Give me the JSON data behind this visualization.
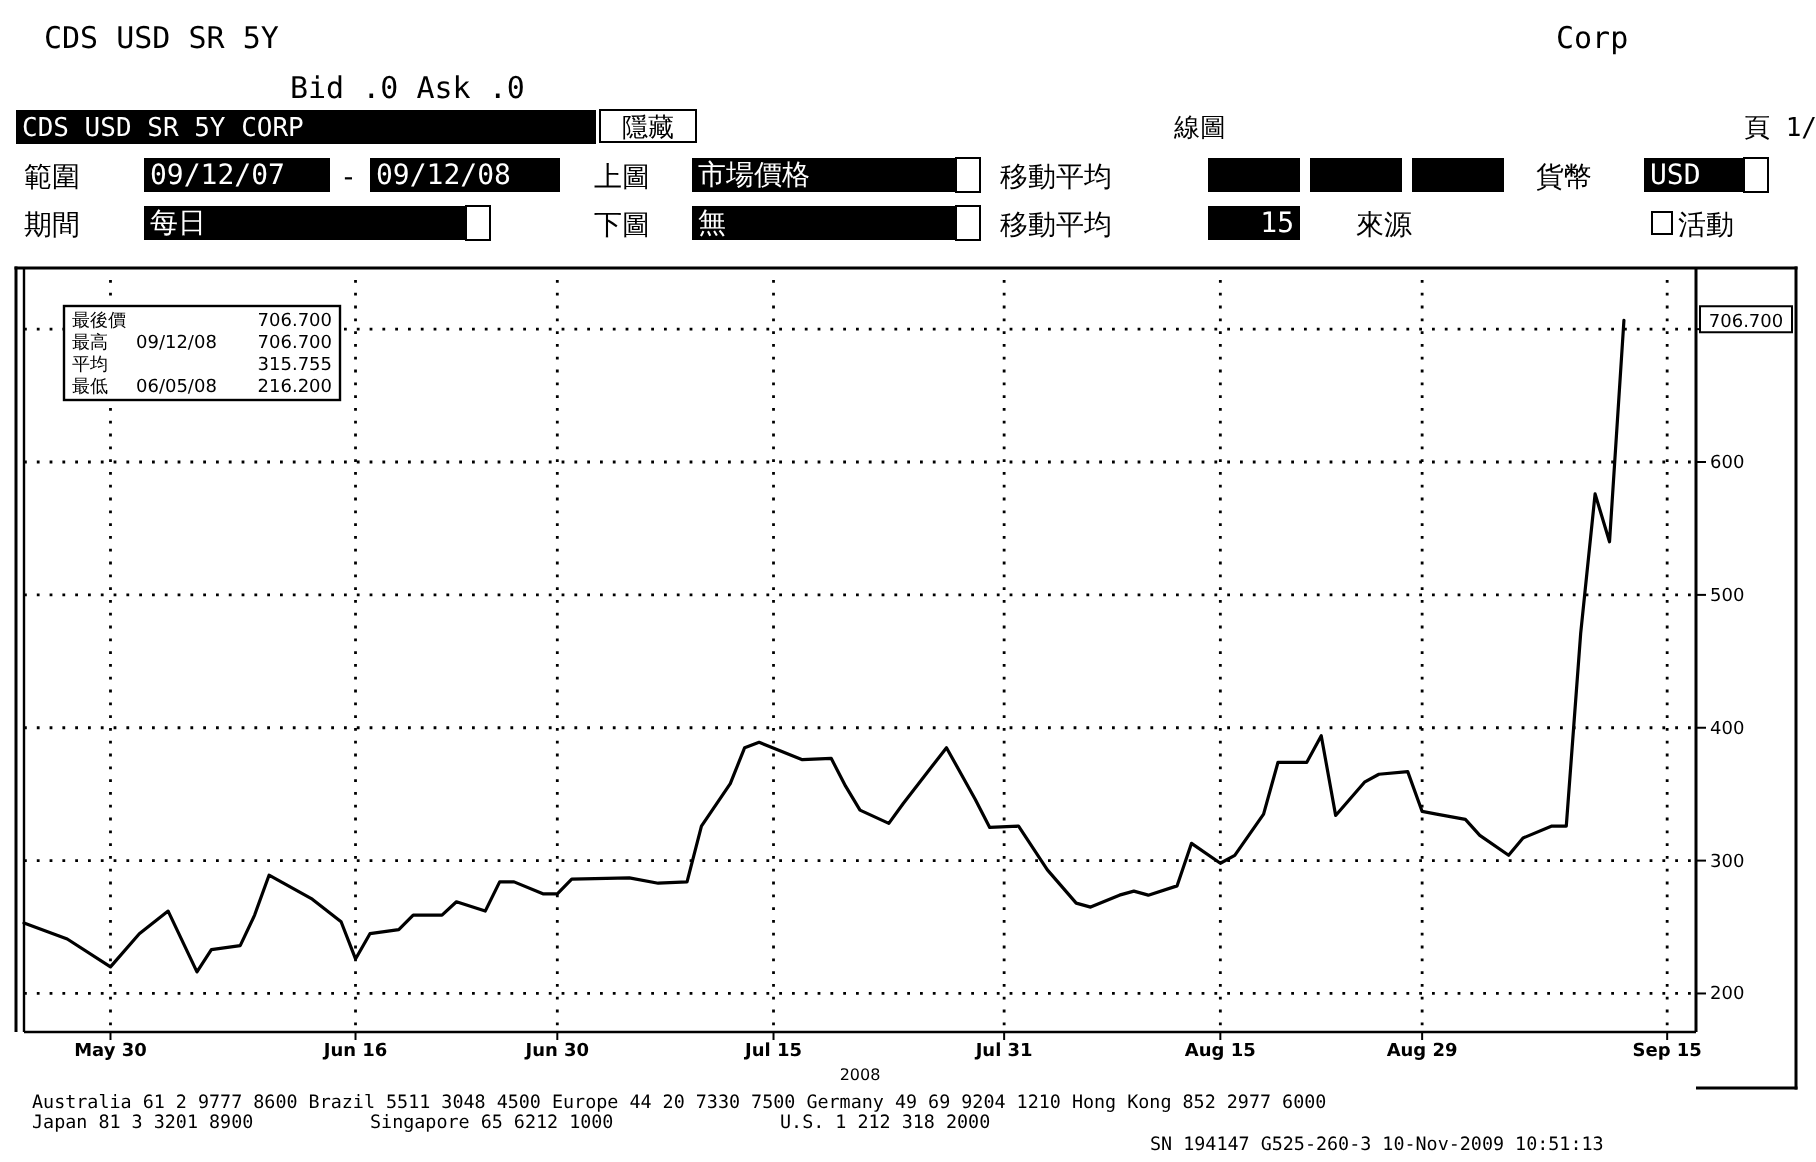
{
  "chart_data": {
    "type": "line",
    "title": "CDS USD SR 5Y",
    "subtitle": "Bid .0  Ask .0",
    "xlabel": "2008",
    "x": [
      "2008-05-24",
      "2008-05-27",
      "2008-05-30",
      "2008-06-01",
      "2008-06-03",
      "2008-06-05",
      "2008-06-06",
      "2008-06-08",
      "2008-06-09",
      "2008-06-10",
      "2008-06-13",
      "2008-06-15",
      "2008-06-16",
      "2008-06-17",
      "2008-06-19",
      "2008-06-20",
      "2008-06-22",
      "2008-06-23",
      "2008-06-25",
      "2008-06-26",
      "2008-06-27",
      "2008-06-29",
      "2008-06-30",
      "2008-07-01",
      "2008-07-05",
      "2008-07-07",
      "2008-07-09",
      "2008-07-10",
      "2008-07-12",
      "2008-07-13",
      "2008-07-14",
      "2008-07-17",
      "2008-07-19",
      "2008-07-20",
      "2008-07-21",
      "2008-07-23",
      "2008-07-24",
      "2008-07-26",
      "2008-07-27",
      "2008-07-29",
      "2008-07-30",
      "2008-08-01",
      "2008-08-03",
      "2008-08-05",
      "2008-08-06",
      "2008-08-08",
      "2008-08-09",
      "2008-08-10",
      "2008-08-12",
      "2008-08-13",
      "2008-08-15",
      "2008-08-16",
      "2008-08-18",
      "2008-08-19",
      "2008-08-21",
      "2008-08-22",
      "2008-08-23",
      "2008-08-25",
      "2008-08-26",
      "2008-08-28",
      "2008-08-29",
      "2008-08-30",
      "2008-09-01",
      "2008-09-02",
      "2008-09-04",
      "2008-09-05",
      "2008-09-07",
      "2008-09-08",
      "2008-09-09",
      "2008-09-10",
      "2008-09-11",
      "2008-09-12"
    ],
    "series": [
      {
        "color": "#000000",
        "values": [
          253,
          241,
          220,
          245,
          262,
          216.2,
          233,
          236,
          259,
          289,
          271,
          254,
          226,
          245,
          248,
          259,
          259,
          269,
          262,
          284,
          284,
          275,
          275,
          286,
          287,
          283,
          284,
          326,
          358,
          385,
          389,
          376,
          377,
          356,
          338,
          328,
          343,
          371,
          385,
          346,
          325,
          326,
          293,
          268,
          265,
          274,
          277,
          274,
          281,
          313,
          298,
          304,
          335,
          374,
          374,
          394,
          334,
          359,
          365,
          367,
          337,
          335,
          331,
          319,
          304,
          317,
          326,
          326,
          471,
          576,
          540,
          706.7
        ]
      }
    ],
    "xlim": [
      "2008-05-24",
      "2008-09-17"
    ],
    "xticks": [
      {
        "value": "2008-05-30",
        "label": "May 30"
      },
      {
        "value": "2008-06-16",
        "label": "Jun 16"
      },
      {
        "value": "2008-06-30",
        "label": "Jun 30"
      },
      {
        "value": "2008-07-15",
        "label": "Jul 15"
      },
      {
        "value": "2008-07-31",
        "label": "Jul 31"
      },
      {
        "value": "2008-08-15",
        "label": "Aug 15"
      },
      {
        "value": "2008-08-29",
        "label": "Aug 29"
      },
      {
        "value": "2008-09-15",
        "label": "Sep 15"
      }
    ],
    "ylim": [
      171,
      737
    ],
    "yticks": [
      200,
      300,
      400,
      500,
      600,
      {
        "value": 700,
        "label": null
      }
    ],
    "grid": true,
    "annotations": [
      "Corp",
      "CDS USD SR 5Y CORP",
      "隱藏",
      "線圖",
      "頁 1/",
      "範圍",
      "09/12/07",
      "-",
      "09/12/08",
      "上圖",
      "市場價格",
      "移動平均",
      "貨幣",
      "USD",
      "期間",
      "每日",
      "下圖",
      "無",
      "移動平均",
      "15",
      "來源",
      "活動",
      "最後價",
      "706.700",
      "最高",
      "09/12/08",
      "706.700",
      "平均",
      "315.755",
      "最低",
      "06/05/08",
      "216.200",
      "706.700",
      "Australia 61 2 9777 8600 Brazil 5511 3048 4500 Europe 44 20 7330 7500 Germany 49 69 9204 1210 Hong Kong 852 2977 6000",
      "Japan 81 3 3201 8900",
      "Singapore 65 6212 1000",
      "U.S. 1 212 318 2000",
      "SN 194147 G525-260-3 10-Nov-2009 10:51:13"
    ]
  }
}
